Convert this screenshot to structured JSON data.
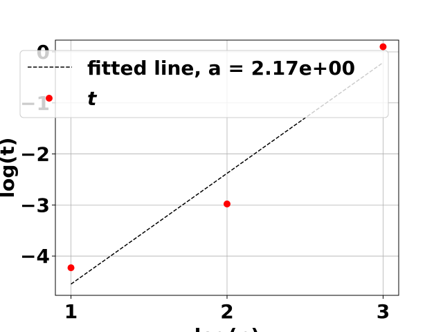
{
  "chart_data": {
    "type": "scatter",
    "xlabel": "log(n)",
    "ylabel": "log(t)",
    "xlim": [
      0.9,
      3.1
    ],
    "ylim": [
      -4.77,
      0.23
    ],
    "xticks": [
      1,
      2,
      3
    ],
    "xtick_labels": [
      "1",
      "2",
      "3"
    ],
    "yticks": [
      -4,
      -3,
      -2,
      -1,
      0
    ],
    "ytick_labels": [
      "−4",
      "−3",
      "−2",
      "−1",
      "0"
    ],
    "grid": true,
    "legend_position": "upper-center",
    "series": [
      {
        "name": "fitted line, a = 2.17e+00",
        "kind": "line",
        "style": "dashed",
        "color": "#000000",
        "x": [
          1,
          3
        ],
        "y": [
          -4.55,
          -0.21
        ]
      },
      {
        "name": "t",
        "kind": "scatter",
        "color": "#ff0000",
        "x": [
          1,
          2,
          3
        ],
        "y": [
          -4.23,
          -2.98,
          0.1
        ]
      }
    ]
  }
}
